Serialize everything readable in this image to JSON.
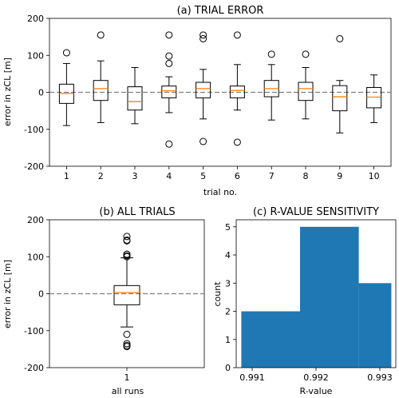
{
  "chart_data": [
    {
      "type": "boxplot",
      "title": "(a) TRIAL ERROR",
      "xlabel": "trial no.",
      "ylabel": "error in zCL [m]",
      "ylim": [
        -200,
        200
      ],
      "yticks": [
        -200,
        -100,
        0,
        100,
        200
      ],
      "reference_line": 0,
      "categories": [
        "1",
        "2",
        "3",
        "4",
        "5",
        "6",
        "7",
        "8",
        "9",
        "10"
      ],
      "boxes": [
        {
          "q1": -30,
          "median": -3,
          "q3": 22,
          "whislo": -90,
          "whishi": 78,
          "fliers": [
            107
          ]
        },
        {
          "q1": -22,
          "median": 10,
          "q3": 32,
          "whislo": -82,
          "whishi": 85,
          "fliers": [
            155
          ]
        },
        {
          "q1": -48,
          "median": -25,
          "q3": 15,
          "whislo": -85,
          "whishi": 67,
          "fliers": []
        },
        {
          "q1": -15,
          "median": 4,
          "q3": 17,
          "whislo": -55,
          "whishi": 42,
          "fliers": [
            155,
            98,
            78,
            -140
          ]
        },
        {
          "q1": -15,
          "median": 10,
          "q3": 27,
          "whislo": -72,
          "whishi": 62,
          "fliers": [
            155,
            145,
            -133
          ]
        },
        {
          "q1": -15,
          "median": 5,
          "q3": 17,
          "whislo": -48,
          "whishi": 75,
          "fliers": [
            155,
            -135
          ]
        },
        {
          "q1": -12,
          "median": 10,
          "q3": 32,
          "whislo": -75,
          "whishi": 75,
          "fliers": [
            103
          ]
        },
        {
          "q1": -22,
          "median": 10,
          "q3": 27,
          "whislo": -72,
          "whishi": 67,
          "fliers": [
            103
          ]
        },
        {
          "q1": -50,
          "median": -12,
          "q3": 18,
          "whislo": -110,
          "whishi": 32,
          "fliers": [
            145
          ]
        },
        {
          "q1": -42,
          "median": -13,
          "q3": 13,
          "whislo": -82,
          "whishi": 47,
          "fliers": []
        }
      ]
    },
    {
      "type": "boxplot",
      "title": "(b) ALL TRIALS",
      "xlabel": "all runs",
      "ylabel": "error in zCL [m]",
      "ylim": [
        -200,
        200
      ],
      "yticks": [
        -200,
        -100,
        0,
        100,
        200
      ],
      "reference_line": 0,
      "categories": [
        "1"
      ],
      "boxes": [
        {
          "q1": -30,
          "median": 3,
          "q3": 22,
          "whislo": -90,
          "whishi": 97,
          "fliers": [
            155,
            145,
            143,
            107,
            103,
            100,
            -110,
            -135,
            -140,
            -143
          ]
        }
      ]
    },
    {
      "type": "histogram",
      "title": "(c) R-VALUE SENSITIVITY",
      "xlabel": "R-value",
      "ylabel": "count",
      "xlim": [
        0.99075,
        0.99325
      ],
      "ylim": [
        0,
        5.25
      ],
      "xticks": [
        "0.991",
        "0.992",
        "0.993"
      ],
      "yticks": [
        0,
        1,
        2,
        3,
        4,
        5
      ],
      "bins": [
        {
          "x0": 0.99083,
          "x1": 0.99175,
          "count": 2
        },
        {
          "x0": 0.99175,
          "x1": 0.99267,
          "count": 5
        },
        {
          "x0": 0.99267,
          "x1": 0.99318,
          "count": 3
        }
      ],
      "color": "#1f77b4"
    }
  ],
  "colors": {
    "median": "#ff7f0e",
    "refline": "#808080",
    "bar": "#1f77b4"
  }
}
